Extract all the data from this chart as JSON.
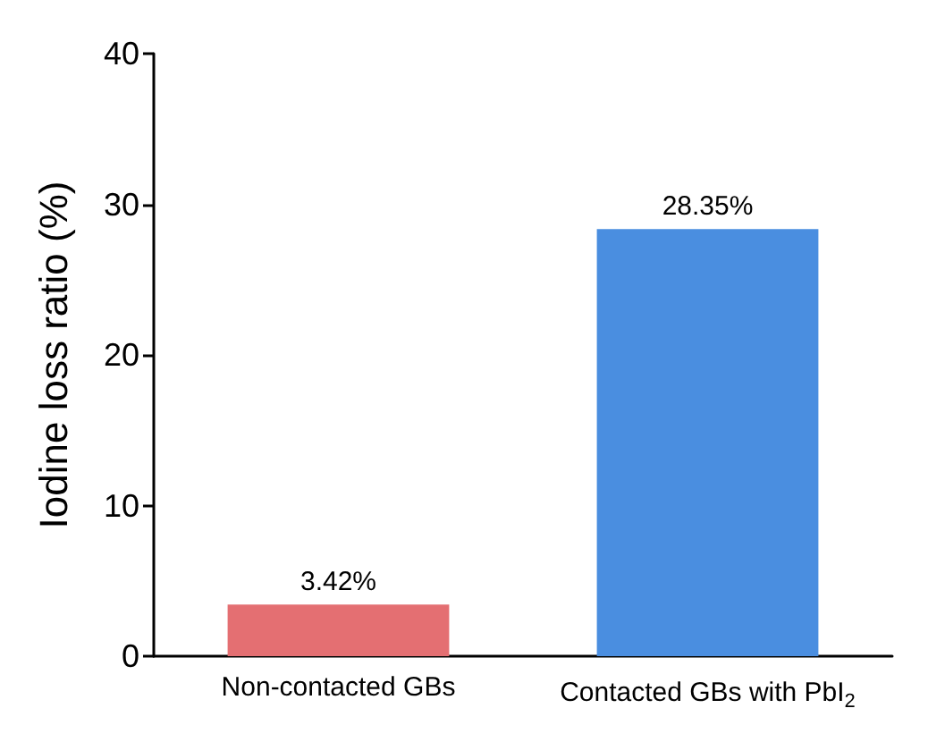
{
  "chart_data": {
    "type": "bar",
    "ylabel": "Iodine loss ratio (%)",
    "categories": [
      "Non-contacted GBs",
      "Contacted GBs with PbI$_{2}$"
    ],
    "values": [
      3.42,
      28.35
    ],
    "colors": [
      "#e46f72",
      "#4a8ee0"
    ],
    "value_labels": [
      "3.42%",
      "28.35%"
    ],
    "ylim": [
      0,
      40
    ],
    "yticks": [
      0,
      10,
      20,
      30,
      40
    ]
  }
}
